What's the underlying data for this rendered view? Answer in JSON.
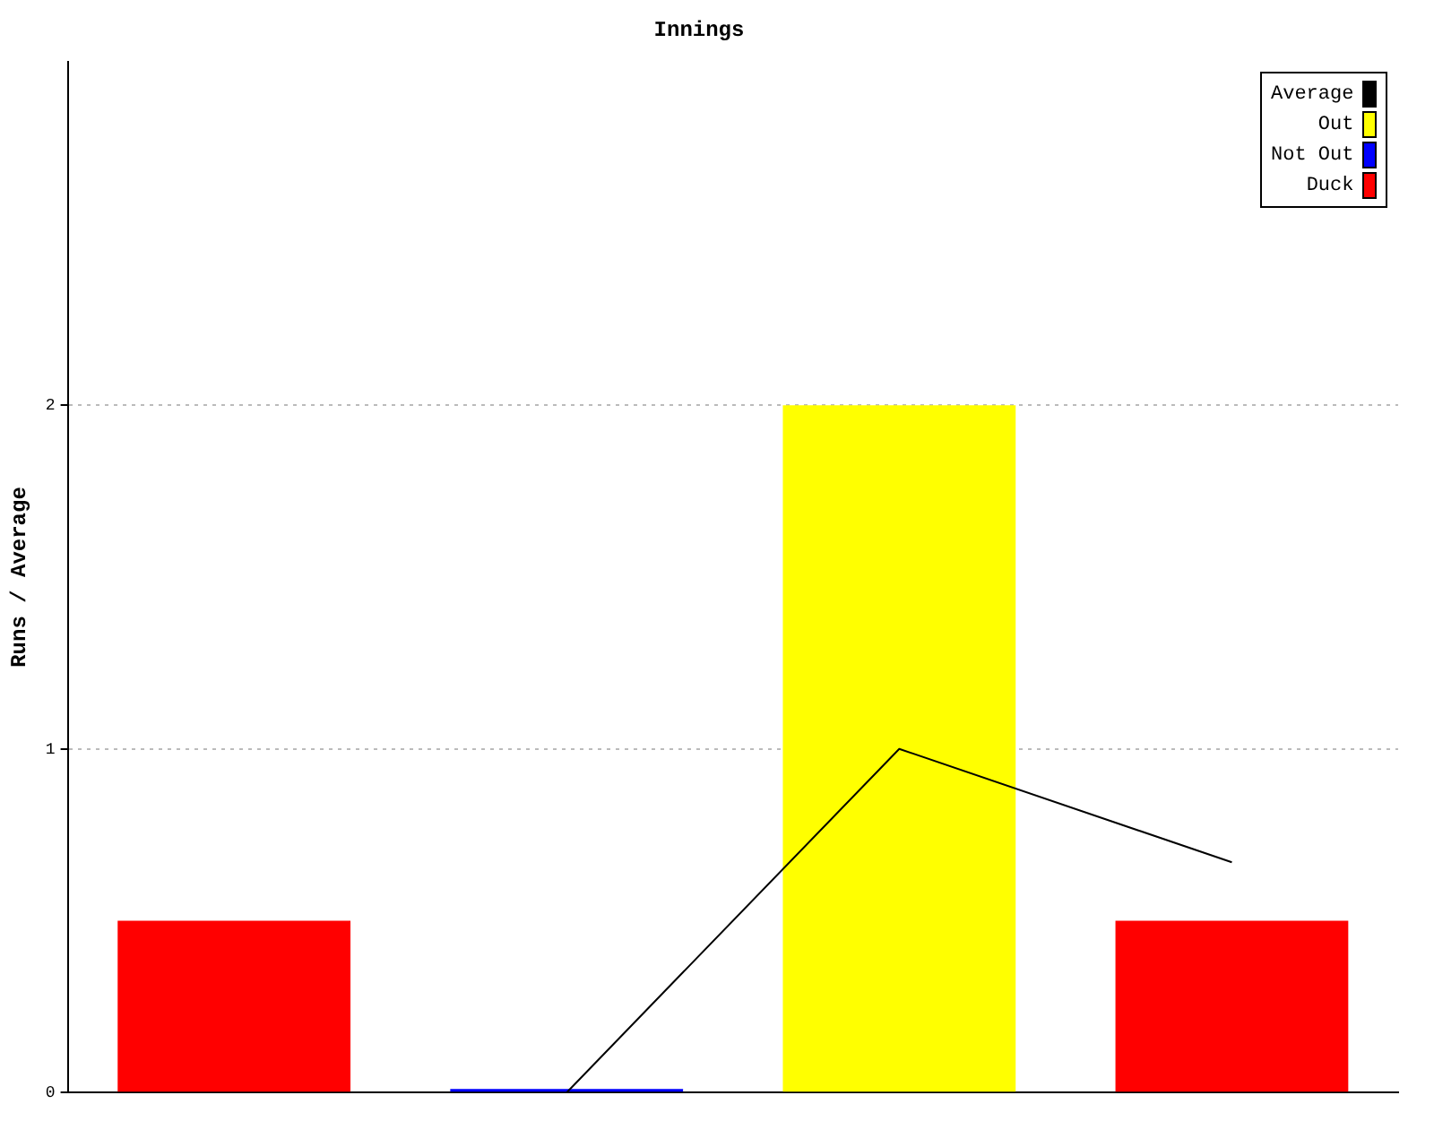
{
  "chart_data": {
    "type": "bar",
    "title": "Innings",
    "ylabel": "Runs / Average",
    "categories": [
      null,
      null,
      null,
      null
    ],
    "stacked": true,
    "series": [
      {
        "name": "Average",
        "type": "line",
        "color": "#000000",
        "values": [
          null,
          0,
          1,
          0.67
        ]
      },
      {
        "name": "Out",
        "color": "#ffff00",
        "values": [
          null,
          null,
          2,
          null
        ]
      },
      {
        "name": "Not Out",
        "color": "#0000ff",
        "values": [
          null,
          0.01,
          null,
          null
        ]
      },
      {
        "name": "Duck",
        "color": "#ff0000",
        "values": [
          0.5,
          null,
          null,
          0.5
        ]
      }
    ],
    "ylim": [
      0,
      3
    ],
    "yticks": [
      0,
      1,
      2
    ],
    "grid": "y",
    "legend": "top right",
    "marker": "none"
  }
}
